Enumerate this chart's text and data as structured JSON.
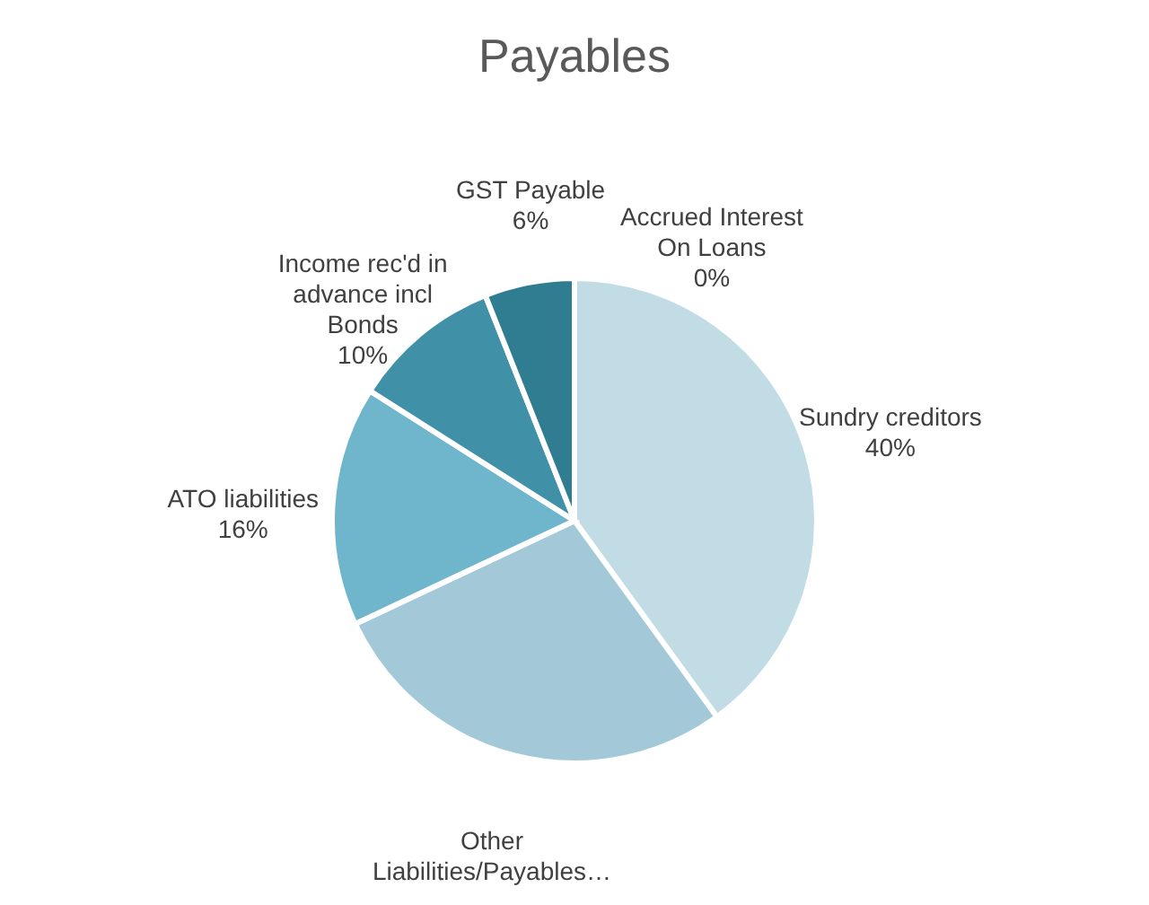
{
  "chart_data": {
    "type": "pie",
    "title": "Payables",
    "categories": [
      "Sundry creditors",
      "Other Liabilities/Payables…",
      "ATO liabilities",
      "Income rec'd in advance incl Bonds",
      "GST Payable",
      "Accrued Interest On Loans"
    ],
    "values": [
      40,
      28,
      16,
      10,
      6,
      0
    ],
    "value_labels": [
      "40%",
      null,
      "16%",
      "10%",
      "6%",
      "0%"
    ],
    "colors": [
      "#c2dce6",
      "#a3c9d8",
      "#6fb5cb",
      "#4090a8",
      "#307c90",
      "#2a6a80"
    ],
    "legend": false
  }
}
